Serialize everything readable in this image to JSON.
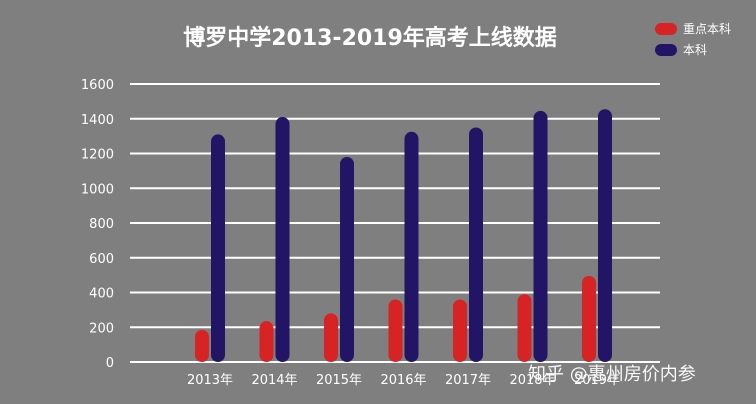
{
  "chart_data": {
    "type": "bar",
    "title": "博罗中学2013-2019年高考上线数据",
    "categories": [
      "2013年",
      "2014年",
      "2015年",
      "2016年",
      "2017年",
      "2018年",
      "2019年"
    ],
    "series": [
      {
        "name": "重点本科",
        "color": "#d72323",
        "values": [
          185,
          235,
          280,
          360,
          360,
          390,
          495
        ]
      },
      {
        "name": "本科",
        "color": "#221565",
        "values": [
          1310,
          1410,
          1180,
          1325,
          1350,
          1445,
          1455
        ]
      }
    ],
    "ylim": [
      0,
      1600
    ],
    "yticks": [
      0,
      200,
      400,
      600,
      800,
      1000,
      1200,
      1400,
      1600
    ],
    "grid": true,
    "legend_position": "top-right",
    "xlabel": "",
    "ylabel": ""
  },
  "watermark": "知乎 @惠州房价内参"
}
